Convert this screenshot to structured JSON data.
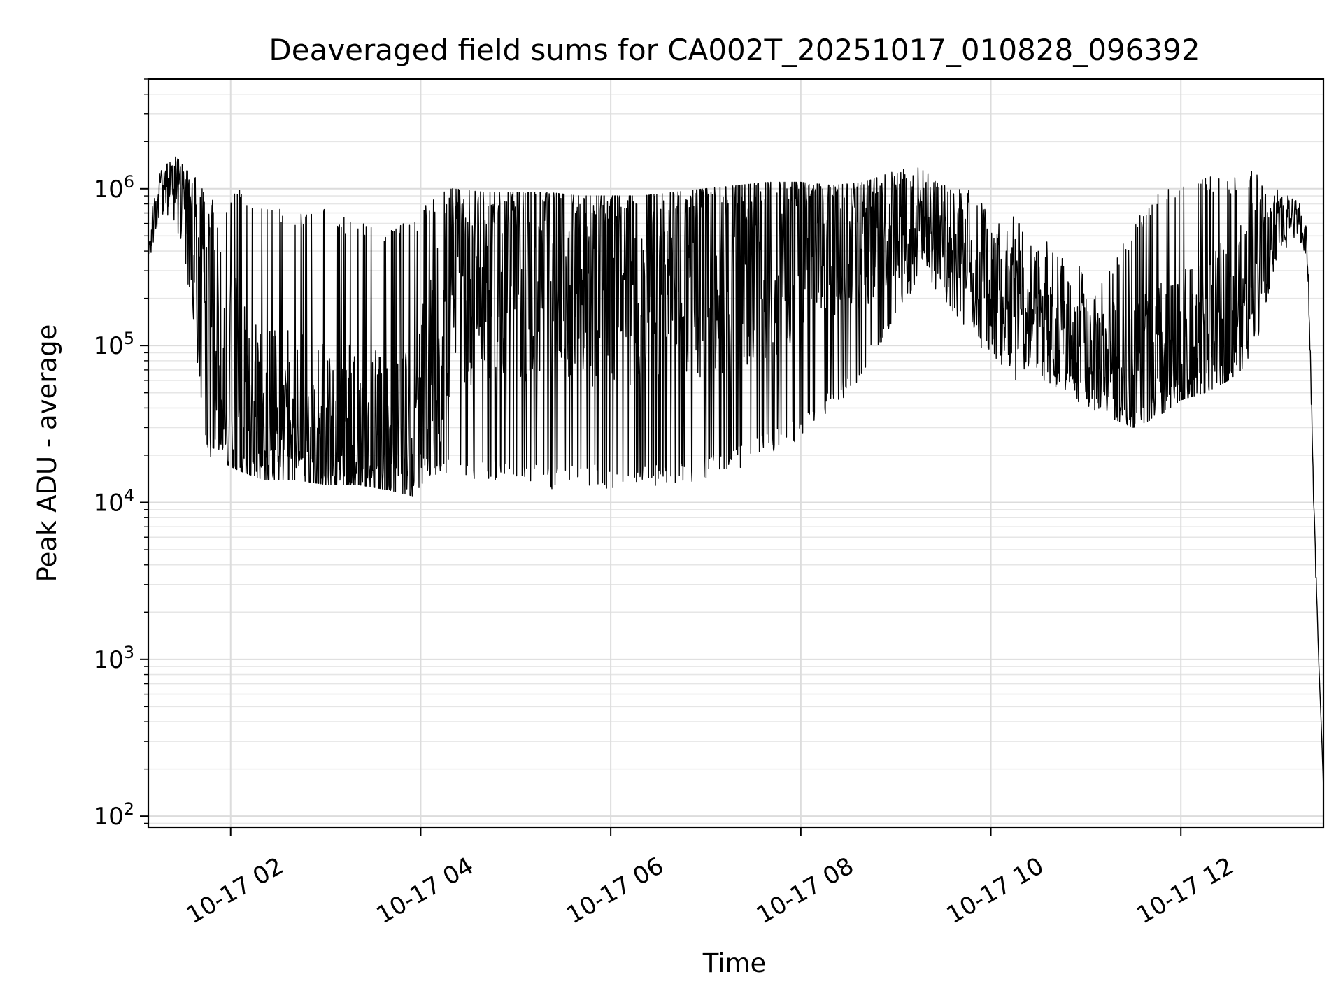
{
  "chart_data": {
    "type": "line",
    "title": "Deaveraged field sums for CA002T_20251017_010828_096392",
    "xlabel": "Time",
    "ylabel": "Peak ADU - average",
    "x_scale": "time",
    "y_scale": "log",
    "grid": "both (major and minor)",
    "legend": "none",
    "line_color": "#000000",
    "xlim": [
      "10-17 01:08",
      "10-17 13:30"
    ],
    "ylim": [
      85,
      5000000
    ],
    "x_ticks": [
      {
        "time": "10-17 02:00",
        "label": "10-17 02"
      },
      {
        "time": "10-17 04:00",
        "label": "10-17 04"
      },
      {
        "time": "10-17 06:00",
        "label": "10-17 06"
      },
      {
        "time": "10-17 08:00",
        "label": "10-17 08"
      },
      {
        "time": "10-17 10:00",
        "label": "10-17 10"
      },
      {
        "time": "10-17 12:00",
        "label": "10-17 12"
      }
    ],
    "y_ticks": [
      {
        "value": 100,
        "base": "10",
        "exp": "2"
      },
      {
        "value": 1000,
        "base": "10",
        "exp": "3"
      },
      {
        "value": 10000,
        "base": "10",
        "exp": "4"
      },
      {
        "value": 100000,
        "base": "10",
        "exp": "5"
      },
      {
        "value": 1000000,
        "base": "10",
        "exp": "6"
      }
    ],
    "series": [
      {
        "envelope": {
          "description_note": "",
          "x": [
            "10-17 01:08",
            "10-17 01:15",
            "10-17 01:25",
            "10-17 01:35",
            "10-17 01:45",
            "10-17 01:55",
            "10-17 02:05",
            "10-17 02:20",
            "10-17 02:40",
            "10-17 03:00",
            "10-17 03:20",
            "10-17 03:40",
            "10-17 03:55",
            "10-17 04:05",
            "10-17 04:20",
            "10-17 04:40",
            "10-17 05:00",
            "10-17 05:20",
            "10-17 05:40",
            "10-17 06:00",
            "10-17 06:20",
            "10-17 06:40",
            "10-17 07:00",
            "10-17 07:20",
            "10-17 07:40",
            "10-17 08:00",
            "10-17 08:20",
            "10-17 08:40",
            "10-17 09:00",
            "10-17 09:15",
            "10-17 09:30",
            "10-17 09:45",
            "10-17 10:00",
            "10-17 10:15",
            "10-17 10:30",
            "10-17 10:45",
            "10-17 11:00",
            "10-17 11:15",
            "10-17 11:30",
            "10-17 11:45",
            "10-17 12:00",
            "10-17 12:15",
            "10-17 12:30",
            "10-17 12:45",
            "10-17 13:00",
            "10-17 13:10",
            "10-17 13:15",
            "10-17 13:20",
            "10-17 13:24",
            "10-17 13:27",
            "10-17 13:29",
            "10-17 13:30"
          ],
          "upper": [
            600000,
            1300000,
            1600000,
            1300000,
            900000,
            900000,
            1000000,
            900000,
            700000,
            800000,
            600000,
            600000,
            600000,
            900000,
            1000000,
            950000,
            950000,
            950000,
            900000,
            900000,
            900000,
            950000,
            1000000,
            1050000,
            1100000,
            1100000,
            1050000,
            1100000,
            1300000,
            1500000,
            1200000,
            1000000,
            800000,
            700000,
            500000,
            400000,
            300000,
            300000,
            600000,
            1000000,
            1200000,
            1200000,
            1200000,
            1300000,
            1000000,
            900000,
            800000,
            600000,
            10000,
            1000,
            300,
            150
          ],
          "center": [
            400000,
            900000,
            1200000,
            700000,
            300000,
            80000,
            50000,
            30000,
            25000,
            25000,
            20000,
            20000,
            20000,
            50000,
            250000,
            300000,
            300000,
            300000,
            300000,
            300000,
            300000,
            300000,
            350000,
            350000,
            400000,
            500000,
            550000,
            550000,
            600000,
            700000,
            500000,
            400000,
            300000,
            200000,
            150000,
            120000,
            100000,
            80000,
            70000,
            70000,
            80000,
            100000,
            150000,
            300000,
            600000,
            700000,
            650000,
            400000,
            10000,
            1000,
            300,
            150
          ],
          "lower": [
            300000,
            500000,
            600000,
            200000,
            20000,
            18000,
            16000,
            14000,
            14000,
            13000,
            13000,
            12000,
            11000,
            15000,
            14000,
            14000,
            14000,
            12000,
            13000,
            12000,
            12000,
            13000,
            14000,
            16000,
            20000,
            25000,
            40000,
            60000,
            150000,
            250000,
            200000,
            120000,
            80000,
            60000,
            60000,
            50000,
            40000,
            35000,
            30000,
            35000,
            45000,
            50000,
            60000,
            80000,
            300000,
            500000,
            450000,
            300000,
            7000,
            1000,
            300,
            140
          ]
        }
      }
    ]
  }
}
